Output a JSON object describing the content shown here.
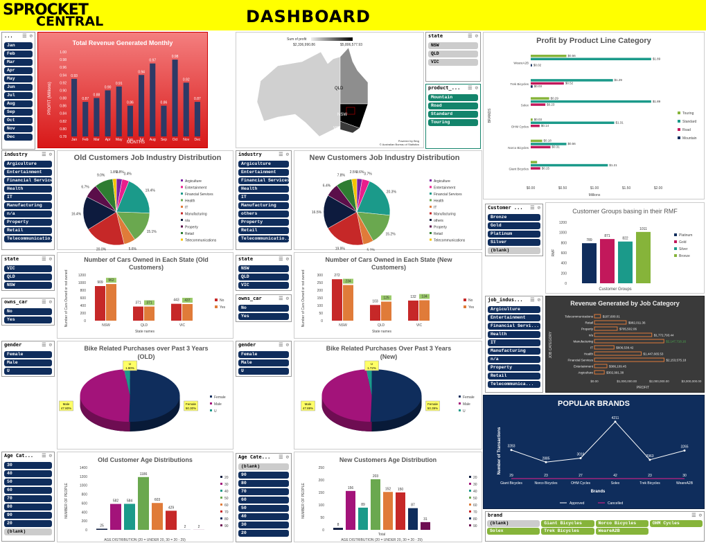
{
  "header": {
    "logo_line1": "SPROCKET",
    "logo_line2": "CENTRAL",
    "title": "DASHBOARD"
  },
  "month_slicer": {
    "title": "...",
    "items": [
      "Jan",
      "Feb",
      "Mar",
      "Apr",
      "May",
      "Jun",
      "Jul",
      "Aug",
      "Sep",
      "Oct",
      "Nov",
      "Dec"
    ]
  },
  "revenue_chart": {
    "title": "Total Revenue Generated Monthly",
    "ylabel": "PROFIT (Millions)",
    "xlabel": "MONTHS",
    "yticks": [
      "1.00",
      "0.98",
      "0.96",
      "0.94",
      "0.92",
      "0.90",
      "0.88",
      "0.86",
      "0.84",
      "0.82",
      "0.80",
      "0.78"
    ]
  },
  "map": {
    "legend_title": "Sum of profit",
    "legend_min": "$2,336,990.86",
    "legend_max": "$5,806,577.93",
    "labels": [
      "QLD",
      "NSW",
      "VIC"
    ],
    "credit1": "Powered by Bing",
    "credit2": "© Australian Bureau of Statistics"
  },
  "state_slicer_top": {
    "title": "state",
    "items": [
      "NSW",
      "QLD",
      "VIC"
    ]
  },
  "product_slicer": {
    "title": "product_...",
    "items": [
      "Mountain",
      "Road",
      "Standard",
      "Touring"
    ]
  },
  "profit_chart": {
    "title": "Profit by Product Line Category",
    "ylabel": "BRANDS",
    "xlabel": "Millions",
    "xticks": [
      "$0.00",
      "$0.50",
      "$1.00",
      "$1.50",
      "$2.00"
    ],
    "legend": [
      "Touring",
      "Standard",
      "Road",
      "Mountain"
    ]
  },
  "industry_slicer_old": {
    "title": "industry",
    "items": [
      "Argiculture",
      "Entertainment",
      "Financial Services",
      "Health",
      "IT",
      "Manufacturing",
      "n/a",
      "Property",
      "Retail",
      "Telecommunicatio..."
    ]
  },
  "industry_slicer_new": {
    "title": "industry",
    "items": [
      "Argiculture",
      "Entertainment",
      "Financial Services",
      "Health",
      "IT",
      "Manufacturing",
      "others",
      "Property",
      "Retail",
      "Telecommunicatio..."
    ]
  },
  "old_job_pie": {
    "title": "Old Customers Job Industry Distribution",
    "legend": [
      "Argiculture",
      "Entertainment",
      "Financial Services",
      "Health",
      "IT",
      "Manufacturing",
      "n/a",
      "Property",
      "Retail",
      "Telecommunications"
    ],
    "labels": [
      "1.8%",
      "2.8%",
      "3.4%",
      "19.4%",
      "15.1%",
      "5.6%",
      "20.0%",
      "16.4%",
      "6.7%",
      "9.0%"
    ]
  },
  "new_job_pie": {
    "title": "New Customers Job Industry Distribution",
    "legend": [
      "Argiculture",
      "Entertainment",
      "Financial Services",
      "Health",
      "IT",
      "Manufacturing",
      "others",
      "Property",
      "Retail",
      "Telecommunications"
    ],
    "labels": [
      "2.5%",
      "2.6%",
      "3.7%",
      "20.3%",
      "15.2%",
      "5.1%",
      "19.9%",
      "16.5%",
      "6.4%",
      "7.8%"
    ]
  },
  "cust_slicer": {
    "title": "Customer ...",
    "items": [
      "Bronze",
      "Gold",
      "Platinum",
      "Silver",
      "(blank)"
    ]
  },
  "rmf_chart": {
    "title": "Customer Groups basing in their RMF",
    "ylabel": "RMF",
    "xlabel": "Customer Groups",
    "yticks": [
      "1200",
      "1000",
      "800",
      "600",
      "400",
      "200",
      "0"
    ],
    "legend": [
      "Platinum",
      "Gold",
      "Silver",
      "Bronze"
    ]
  },
  "state_slicer_old": {
    "title": "state",
    "items": [
      "VIC",
      "QLD",
      "NSW"
    ]
  },
  "state_slicer_new": {
    "title": "state",
    "items": [
      "NSW",
      "QLD",
      "VIC"
    ]
  },
  "cars_old": {
    "title": "Number of Cars Owned in Each State (Old Customers)",
    "ylabel": "Number of Cars Owned or not owned",
    "xlabel": "State names",
    "yticks": [
      "1200",
      "1000",
      "800",
      "600",
      "400",
      "200",
      "0"
    ],
    "legend": [
      "No",
      "Yes"
    ]
  },
  "cars_new": {
    "title": "Number of Cars Owned in Each State (New Customers)",
    "ylabel": "Number of Cars Owned or not owned",
    "xlabel": "State names",
    "yticks": [
      "300",
      "250",
      "200",
      "150",
      "100",
      "50",
      "0"
    ],
    "legend": [
      "No",
      "Yes"
    ]
  },
  "owns_car_old": {
    "title": "owns_car",
    "items": [
      "No",
      "Yes"
    ]
  },
  "owns_car_new": {
    "title": "owns_car",
    "items": [
      "No",
      "Yes"
    ]
  },
  "job_slicer": {
    "title": "job_indus...",
    "items": [
      "Argiculture",
      "Entertainment",
      "Financial Servi...",
      "Health",
      "IT",
      "Manufacturing",
      "n/a",
      "Property",
      "Retail",
      "Telecommunica..."
    ]
  },
  "job_rev": {
    "title": "Revenue Generated by Job Category",
    "ylabel": "JOB CATEGORY",
    "xlabel": "PROFIT",
    "xticks": [
      "$0.00",
      "$1,000,000.00",
      "$2,000,000.00",
      "$3,000,000.00"
    ]
  },
  "gender_slicer_old": {
    "title": "gender",
    "items": [
      "Female",
      "Male",
      "U"
    ]
  },
  "gender_slicer_new": {
    "title": "gender",
    "items": [
      "Female",
      "Male",
      "U"
    ]
  },
  "bike_old": {
    "title": "Bike Related Purchases over Past 3 Years (OLD)",
    "legend": [
      "Female",
      "Male",
      "U"
    ],
    "callouts": [
      {
        "name": "U",
        "pct": "1.90%"
      },
      {
        "name": "Male",
        "pct": "47.80%"
      },
      {
        "name": "Female",
        "pct": "50.30%"
      }
    ]
  },
  "bike_new": {
    "title": "Bike Related Purchases Over Past 3 Years (New)",
    "legend": [
      "Female",
      "Male",
      "U"
    ],
    "callouts": [
      {
        "name": "U",
        "pct": "1.72%"
      },
      {
        "name": "Male",
        "pct": "47.89%"
      },
      {
        "name": "Female",
        "pct": "50.39%"
      }
    ]
  },
  "brands_chart": {
    "title": "POPULAR BRANDS",
    "ylabel": "Number of Transactions",
    "xlabel": "Brands",
    "legend": [
      "Approved",
      "Cancelled"
    ]
  },
  "age_slicer_old": {
    "title": "Age Cat...",
    "items": [
      "30",
      "40",
      "50",
      "60",
      "70",
      "80",
      "90",
      "20",
      "(blank)"
    ]
  },
  "age_slicer_new": {
    "title": "Age Cate...",
    "items": [
      "(blank)",
      "90",
      "80",
      "70",
      "60",
      "50",
      "40",
      "30",
      "20"
    ]
  },
  "age_old": {
    "title": "Old Customer Age Distributions",
    "ylabel": "NUMBER OF PEOPLE",
    "xlabel": "AGE DISTRIBUTION (20 = UNDER 20, 30 = 20 - 29)",
    "yticks": [
      "1400",
      "1200",
      "1000",
      "800",
      "600",
      "400",
      "200",
      "0"
    ],
    "legend": [
      "20",
      "30",
      "40",
      "50",
      "60",
      "70",
      "80",
      "90"
    ]
  },
  "age_new": {
    "title": "New Customers Age Distribution",
    "ylabel": "NUMBER OF PEOPLE",
    "xlabel": "AGE DISTRIBUTION (20 = UNDER 20, 30 = 20 - 29)",
    "xcat": "Total",
    "yticks": [
      "250",
      "200",
      "150",
      "100",
      "50",
      "0"
    ],
    "legend": [
      "20",
      "30",
      "40",
      "50",
      "60",
      "70",
      "80",
      "90"
    ]
  },
  "brand_slicer": {
    "title": "brand",
    "items": [
      "(blank)",
      "Giant Bicycles",
      "Norco Bicycles",
      "OHM Cycles",
      "Solex",
      "Trek Bicycles",
      "WeareA2B"
    ]
  },
  "chart_data": [
    {
      "type": "bar",
      "title": "Total Revenue Generated Monthly",
      "categories": [
        "Jan",
        "Feb",
        "Mar",
        "Apr",
        "May",
        "Jun",
        "Jul",
        "Aug",
        "Sep",
        "Oct",
        "Nov",
        "Dec"
      ],
      "values": [
        0.93,
        0.87,
        0.88,
        0.9,
        0.91,
        0.86,
        0.94,
        0.97,
        0.86,
        0.98,
        0.92,
        0.87
      ],
      "labels": [
        "0.93",
        "0.87",
        "0.88",
        "0.90",
        "0.91",
        "0.86",
        "0.94",
        "0.97",
        "0.86",
        "0.98",
        "0.92",
        "0.87"
      ],
      "ylim": [
        0.78,
        1.0
      ]
    },
    {
      "type": "bar",
      "title": "Profit by Product Line Category",
      "categories": [
        "WeareA2B",
        "Trek Bicycles",
        "Solex",
        "OHM Cycles",
        "Norco Bicycles",
        "Giant Bicycles"
      ],
      "series": [
        {
          "name": "Touring",
          "values": [
            0.56,
            0,
            0.29,
            0.03,
            0.18,
            0.1
          ],
          "labels": [
            "$0.56",
            "",
            "$0.29",
            "$0.03",
            "$0.18",
            ""
          ]
        },
        {
          "name": "Standard",
          "values": [
            1.89,
            1.29,
            1.89,
            1.31,
            0.56,
            1.21
          ],
          "labels": [
            "$1.89",
            "$1.29",
            "$1.89",
            "$1.31",
            "$0.56",
            "$1.21"
          ]
        },
        {
          "name": "Road",
          "values": [
            0,
            0.52,
            0.23,
            0.14,
            0.31,
            0.15
          ],
          "labels": [
            "",
            "$0.52",
            "$0.23",
            "$0.14",
            "$0.31",
            "$0.15"
          ]
        },
        {
          "name": "Mountain",
          "values": [
            0.02,
            0.03,
            0,
            0,
            0,
            0
          ],
          "labels": [
            "$0.02",
            "$0.03",
            "",
            "",
            "",
            ""
          ]
        }
      ],
      "xlim": [
        0,
        2
      ]
    },
    {
      "type": "pie",
      "title": "Old Customers Job Industry Distribution",
      "categories": [
        "Argiculture",
        "Entertainment",
        "Financial Services",
        "Health",
        "IT",
        "Manufacturing",
        "n/a",
        "Property",
        "Retail",
        "Telecommunications"
      ],
      "values": [
        2.8,
        3.4,
        19.4,
        15.1,
        5.6,
        20.0,
        16.4,
        6.7,
        9.0,
        1.8
      ],
      "colors": [
        "#7b1fa2",
        "#e91e8c",
        "#1b9a8a",
        "#6aa84f",
        "#e07b39",
        "#c62828",
        "#0d1b3e",
        "#5b0e4a",
        "#2e7d32",
        "#f4c300"
      ]
    },
    {
      "type": "pie",
      "title": "New Customers Job Industry Distribution",
      "categories": [
        "Argiculture",
        "Entertainment",
        "Financial Services",
        "Health",
        "IT",
        "Manufacturing",
        "others",
        "Property",
        "Retail",
        "Telecommunications"
      ],
      "values": [
        2.6,
        3.7,
        20.3,
        15.2,
        5.1,
        19.9,
        16.5,
        6.4,
        7.8,
        2.5
      ],
      "colors": [
        "#7b1fa2",
        "#e91e8c",
        "#1b9a8a",
        "#6aa84f",
        "#e07b39",
        "#c62828",
        "#0d1b3e",
        "#5b0e4a",
        "#2e7d32",
        "#f4c300"
      ]
    },
    {
      "type": "bar",
      "title": "Customer Groups basing in their RMF",
      "categories": [
        "Platinum",
        "Gold",
        "Silver",
        "Bronze"
      ],
      "values": [
        789,
        871,
        822,
        1011
      ],
      "ylim": [
        0,
        1200
      ]
    },
    {
      "type": "bar",
      "title": "Number of Cars Owned in Each State (Old Customers)",
      "categories": [
        "NSW",
        "QLD",
        "VIC"
      ],
      "series": [
        {
          "name": "No",
          "values": [
            909,
            371,
            443
          ]
        },
        {
          "name": "Yes",
          "values": [
            962,
            371,
            437
          ]
        }
      ],
      "ylim": [
        0,
        1200
      ]
    },
    {
      "type": "bar",
      "title": "Number of Cars Owned in Each State (New Customers)",
      "categories": [
        "NSW",
        "QLD",
        "VIC"
      ],
      "series": [
        {
          "name": "No",
          "values": [
            272,
            103,
            132
          ]
        },
        {
          "name": "Yes",
          "values": [
            234,
            125,
            134
          ]
        }
      ],
      "ylim": [
        0,
        300
      ]
    },
    {
      "type": "bar",
      "title": "Revenue Generated by Job Category",
      "categories": [
        "Telecommunications",
        "Retail",
        "Property",
        "n/a",
        "Manufacturing",
        "IT",
        "Health",
        "Financial Services",
        "Entertainment",
        "Argiculture"
      ],
      "values": [
        187600.01,
        982011.36,
        705502.06,
        1772793.44,
        2147718.16,
        606538.42,
        1447665.53,
        2153575.18,
        386109.45,
        302991.38
      ],
      "labels": [
        "$187,600.01",
        "$982,011.36",
        "$705,502.06",
        "$1,772,793.44",
        "$2,147,718.16",
        "$606,538.42",
        "$1,447,665.53",
        "$2,153,575.18",
        "$386,109.45",
        "$302,991.38"
      ],
      "xlim": [
        0,
        3000000
      ]
    },
    {
      "type": "pie",
      "title": "Bike Related Purchases over Past 3 Years (OLD)",
      "categories": [
        "Female",
        "Male",
        "U"
      ],
      "values": [
        50.3,
        47.8,
        1.9
      ]
    },
    {
      "type": "pie",
      "title": "Bike Related Purchases Over Past 3 Years (New)",
      "categories": [
        "Female",
        "Male",
        "U"
      ],
      "values": [
        50.39,
        47.89,
        1.72
      ]
    },
    {
      "type": "line",
      "title": "POPULAR BRANDS",
      "categories": [
        "Giant Bicycles",
        "Norco Bicycles",
        "OHM Cycles",
        "Solex",
        "Trek Bicycles",
        "WeareA2B"
      ],
      "series": [
        {
          "name": "Approved",
          "values": [
            3283,
            2885,
            3016,
            4211,
            2963,
            3265
          ]
        },
        {
          "name": "Cancelled",
          "values": [
            29,
            23,
            27,
            42,
            23,
            30
          ]
        }
      ]
    },
    {
      "type": "bar",
      "title": "Old Customer Age Distributions",
      "categories": [
        "20",
        "30",
        "40",
        "50",
        "60",
        "70",
        "80",
        "90"
      ],
      "values": [
        25,
        582,
        584,
        1186,
        603,
        429,
        2,
        2
      ],
      "ylim": [
        0,
        1400
      ]
    },
    {
      "type": "bar",
      "title": "New Customers Age Distribution",
      "categories": [
        "20",
        "30",
        "40",
        "50",
        "60",
        "70",
        "80",
        "90"
      ],
      "values": [
        8,
        156,
        89,
        203,
        152,
        150,
        87,
        31
      ],
      "ylim": [
        0,
        250
      ]
    }
  ]
}
